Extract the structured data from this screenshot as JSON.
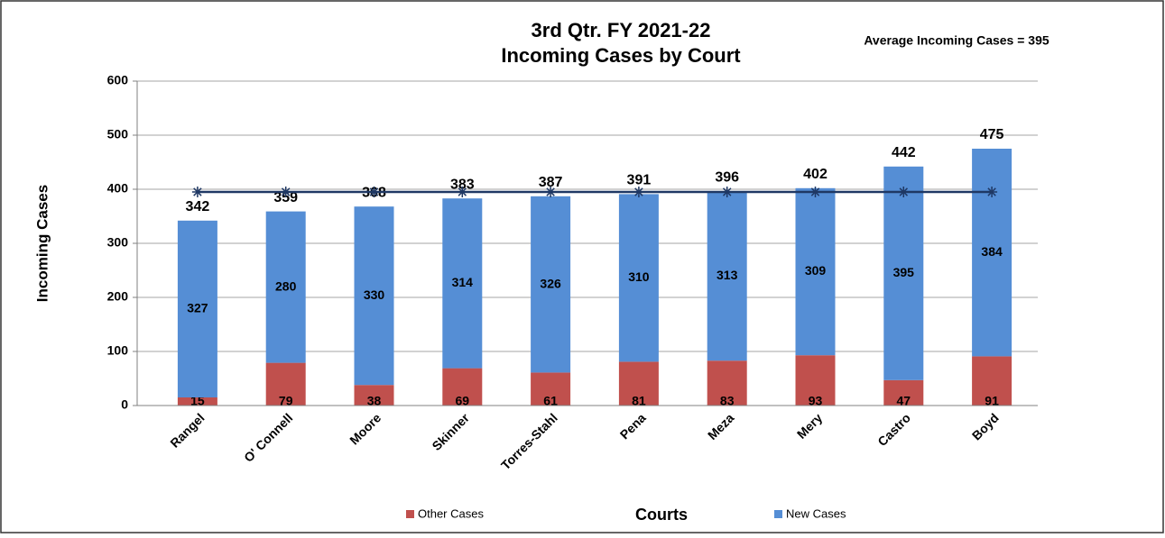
{
  "chart_data": {
    "type": "stacked_bar",
    "title": [
      "3rd Qtr. FY 2021-22",
      "Incoming Cases by Court"
    ],
    "annotation": "Average Incoming Cases = 395",
    "xlabel": "Courts",
    "ylabel": "Incoming Cases",
    "categories": [
      "Rangel",
      "O' Connell",
      "Moore",
      "Skinner",
      "Torres-Stahl",
      "Pena",
      "Meza",
      "Mery",
      "Castro",
      "Boyd"
    ],
    "series": [
      {
        "name": "Other Cases",
        "color": "#c0504d",
        "values": [
          15,
          79,
          38,
          69,
          61,
          81,
          83,
          93,
          47,
          91
        ]
      },
      {
        "name": "New Cases",
        "color": "#558ed5",
        "values": [
          327,
          280,
          330,
          314,
          326,
          310,
          313,
          309,
          395,
          384
        ]
      }
    ],
    "totals": [
      342,
      359,
      368,
      383,
      387,
      391,
      396,
      402,
      442,
      475
    ],
    "average_line": {
      "value": 395,
      "color": "#1f3864"
    },
    "ylim": [
      0,
      600
    ],
    "yticks": [
      0,
      100,
      200,
      300,
      400,
      500,
      600
    ],
    "grid": true
  }
}
